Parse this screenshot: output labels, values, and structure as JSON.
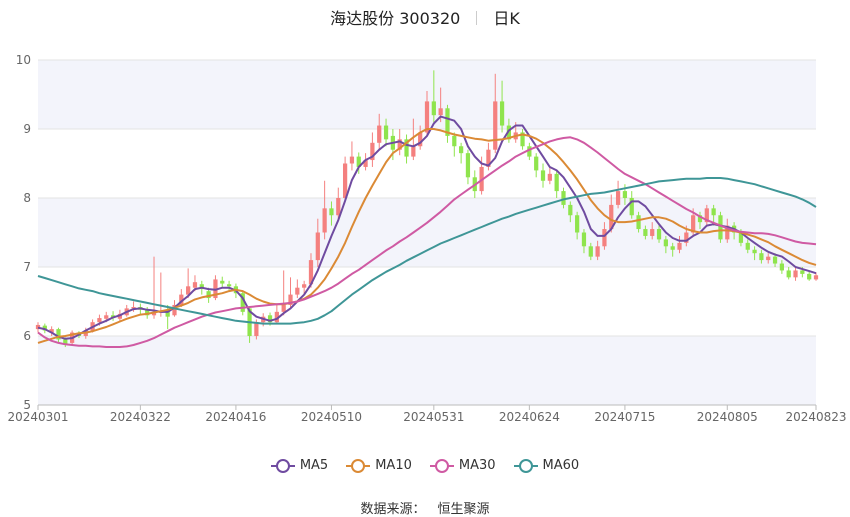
{
  "header": {
    "title": "海达股份 300320",
    "period": "日K"
  },
  "source": {
    "label": "数据来源：",
    "name": "恒生聚源"
  },
  "colors": {
    "up": "#f4807f",
    "down": "#8fe44d",
    "MA5": "#6f4ba0",
    "MA10": "#db8a35",
    "MA30": "#cf5aa3",
    "MA60": "#3f9697",
    "band": "#f3f4fb",
    "grid": "#e3e3e3"
  },
  "chart_data": {
    "type": "candlestick",
    "ylim": [
      5,
      10
    ],
    "yticks": [
      5,
      6,
      7,
      8,
      9,
      10
    ],
    "grid": true,
    "legend_position": "bottom",
    "date_range": [
      "20240301",
      "20240823"
    ],
    "xtick_labels": [
      "20240301",
      "20240322",
      "20240416",
      "20240510",
      "20240531",
      "20240624",
      "20240715",
      "20240805",
      "20240823"
    ],
    "xtick_index": [
      0,
      15,
      29,
      43,
      58,
      72,
      86,
      101,
      114
    ],
    "candles": [
      [
        6.1,
        6.16,
        6.2,
        6.05
      ],
      [
        6.15,
        6.08,
        6.18,
        6.04
      ],
      [
        6.05,
        6.1,
        6.14,
        6.0
      ],
      [
        6.1,
        5.95,
        6.12,
        5.9
      ],
      [
        5.95,
        5.88,
        5.98,
        5.84
      ],
      [
        5.9,
        6.05,
        6.08,
        5.86
      ],
      [
        6.02,
        6.0,
        6.07,
        5.97
      ],
      [
        6.0,
        6.08,
        6.12,
        5.96
      ],
      [
        6.08,
        6.2,
        6.24,
        6.05
      ],
      [
        6.2,
        6.26,
        6.31,
        6.15
      ],
      [
        6.25,
        6.3,
        6.35,
        6.2
      ],
      [
        6.3,
        6.26,
        6.36,
        6.22
      ],
      [
        6.25,
        6.32,
        6.38,
        6.2
      ],
      [
        6.3,
        6.4,
        6.45,
        6.28
      ],
      [
        6.4,
        6.42,
        6.5,
        6.35
      ],
      [
        6.42,
        6.38,
        6.47,
        6.3
      ],
      [
        6.38,
        6.3,
        6.42,
        6.25
      ],
      [
        6.3,
        6.35,
        7.15,
        6.25
      ],
      [
        6.35,
        6.35,
        6.92,
        6.28
      ],
      [
        6.38,
        6.28,
        6.45,
        6.1
      ],
      [
        6.3,
        6.45,
        6.52,
        6.28
      ],
      [
        6.45,
        6.6,
        6.68,
        6.42
      ],
      [
        6.6,
        6.72,
        6.98,
        6.55
      ],
      [
        6.7,
        6.78,
        6.88,
        6.65
      ],
      [
        6.75,
        6.68,
        6.8,
        6.6
      ],
      [
        6.65,
        6.55,
        6.7,
        6.48
      ],
      [
        6.55,
        6.82,
        6.88,
        6.52
      ],
      [
        6.8,
        6.76,
        6.86,
        6.7
      ],
      [
        6.75,
        6.72,
        6.8,
        6.66
      ],
      [
        6.72,
        6.62,
        6.76,
        6.55
      ],
      [
        6.62,
        6.35,
        6.65,
        6.3
      ],
      [
        6.4,
        6.0,
        6.42,
        5.9
      ],
      [
        6.0,
        6.2,
        6.24,
        5.95
      ],
      [
        6.2,
        6.28,
        6.33,
        6.14
      ],
      [
        6.3,
        6.2,
        6.34,
        6.15
      ],
      [
        6.2,
        6.35,
        6.45,
        6.18
      ],
      [
        6.35,
        6.45,
        6.95,
        6.3
      ],
      [
        6.45,
        6.6,
        6.85,
        6.4
      ],
      [
        6.6,
        6.7,
        6.82,
        6.55
      ],
      [
        6.7,
        6.75,
        6.8,
        6.6
      ],
      [
        6.75,
        7.1,
        7.2,
        6.7
      ],
      [
        7.1,
        7.5,
        7.7,
        7.0
      ],
      [
        7.5,
        7.85,
        8.25,
        7.4
      ],
      [
        7.85,
        7.75,
        7.95,
        7.6
      ],
      [
        7.75,
        8.0,
        8.15,
        7.7
      ],
      [
        8.0,
        8.5,
        8.6,
        7.95
      ],
      [
        8.5,
        8.6,
        8.82,
        8.4
      ],
      [
        8.6,
        8.45,
        8.66,
        8.35
      ],
      [
        8.45,
        8.55,
        8.65,
        8.4
      ],
      [
        8.55,
        8.8,
        8.95,
        8.45
      ],
      [
        8.8,
        9.05,
        9.22,
        8.7
      ],
      [
        9.05,
        8.85,
        9.15,
        8.75
      ],
      [
        8.9,
        8.7,
        9.0,
        8.55
      ],
      [
        8.7,
        8.85,
        9.0,
        8.62
      ],
      [
        8.85,
        8.6,
        8.92,
        8.5
      ],
      [
        8.6,
        8.75,
        9.15,
        8.55
      ],
      [
        8.75,
        8.95,
        9.05,
        8.7
      ],
      [
        8.95,
        9.4,
        9.55,
        8.9
      ],
      [
        9.4,
        9.2,
        9.85,
        9.1
      ],
      [
        9.2,
        9.3,
        9.6,
        9.1
      ],
      [
        9.3,
        8.9,
        9.35,
        8.8
      ],
      [
        8.9,
        8.75,
        8.95,
        8.6
      ],
      [
        8.75,
        8.65,
        8.8,
        8.5
      ],
      [
        8.65,
        8.3,
        8.7,
        8.2
      ],
      [
        8.3,
        8.1,
        8.4,
        8.0
      ],
      [
        8.1,
        8.45,
        8.6,
        8.05
      ],
      [
        8.45,
        8.7,
        8.8,
        8.4
      ],
      [
        8.7,
        9.4,
        9.8,
        8.65
      ],
      [
        9.4,
        9.05,
        9.7,
        8.95
      ],
      [
        9.05,
        8.85,
        9.15,
        8.8
      ],
      [
        8.85,
        8.95,
        9.1,
        8.8
      ],
      [
        8.95,
        8.75,
        9.0,
        8.7
      ],
      [
        8.75,
        8.6,
        8.8,
        8.55
      ],
      [
        8.6,
        8.4,
        8.65,
        8.3
      ],
      [
        8.4,
        8.25,
        8.5,
        8.15
      ],
      [
        8.25,
        8.35,
        8.45,
        8.2
      ],
      [
        8.35,
        8.1,
        8.4,
        8.0
      ],
      [
        8.1,
        7.9,
        8.15,
        7.85
      ],
      [
        7.9,
        7.75,
        7.95,
        7.65
      ],
      [
        7.75,
        7.5,
        7.8,
        7.4
      ],
      [
        7.5,
        7.3,
        7.55,
        7.2
      ],
      [
        7.3,
        7.15,
        7.35,
        7.1
      ],
      [
        7.15,
        7.3,
        7.38,
        7.1
      ],
      [
        7.3,
        7.55,
        7.65,
        7.25
      ],
      [
        7.55,
        7.9,
        8.05,
        7.5
      ],
      [
        7.9,
        8.1,
        8.25,
        7.85
      ],
      [
        8.1,
        8.0,
        8.2,
        7.9
      ],
      [
        8.0,
        7.75,
        8.1,
        7.7
      ],
      [
        7.75,
        7.55,
        7.8,
        7.5
      ],
      [
        7.55,
        7.45,
        7.6,
        7.4
      ],
      [
        7.45,
        7.55,
        7.65,
        7.4
      ],
      [
        7.55,
        7.4,
        7.6,
        7.35
      ],
      [
        7.4,
        7.3,
        7.45,
        7.2
      ],
      [
        7.3,
        7.25,
        7.35,
        7.15
      ],
      [
        7.25,
        7.35,
        7.45,
        7.2
      ],
      [
        7.35,
        7.5,
        7.6,
        7.3
      ],
      [
        7.5,
        7.75,
        7.85,
        7.45
      ],
      [
        7.75,
        7.65,
        7.8,
        7.55
      ],
      [
        7.65,
        7.85,
        7.9,
        7.6
      ],
      [
        7.85,
        7.75,
        7.9,
        7.6
      ],
      [
        7.75,
        7.4,
        7.8,
        7.35
      ],
      [
        7.4,
        7.6,
        7.7,
        7.35
      ],
      [
        7.6,
        7.5,
        7.65,
        7.4
      ],
      [
        7.5,
        7.35,
        7.55,
        7.3
      ],
      [
        7.35,
        7.25,
        7.4,
        7.2
      ],
      [
        7.25,
        7.2,
        7.3,
        7.1
      ],
      [
        7.2,
        7.1,
        7.25,
        7.05
      ],
      [
        7.1,
        7.15,
        7.2,
        7.05
      ],
      [
        7.15,
        7.05,
        7.2,
        7.0
      ],
      [
        7.05,
        6.95,
        7.1,
        6.9
      ],
      [
        6.95,
        6.85,
        7.0,
        6.82
      ],
      [
        6.85,
        6.95,
        7.0,
        6.8
      ],
      [
        6.95,
        6.9,
        7.0,
        6.85
      ],
      [
        6.9,
        6.82,
        6.95,
        6.8
      ],
      [
        6.82,
        6.88,
        6.92,
        6.8
      ]
    ],
    "series": [
      {
        "name": "MA5",
        "values": [
          6.12,
          6.1,
          6.05,
          5.99,
          5.96,
          5.97,
          6.02,
          6.08,
          6.13,
          6.18,
          6.22,
          6.27,
          6.3,
          6.35,
          6.39,
          6.4,
          6.38,
          6.37,
          6.35,
          6.35,
          6.41,
          6.5,
          6.58,
          6.68,
          6.7,
          6.68,
          6.67,
          6.7,
          6.7,
          6.66,
          6.55,
          6.36,
          6.28,
          6.25,
          6.22,
          6.25,
          6.33,
          6.4,
          6.5,
          6.6,
          6.75,
          6.95,
          7.2,
          7.45,
          7.68,
          7.96,
          8.26,
          8.45,
          8.55,
          8.6,
          8.7,
          8.78,
          8.8,
          8.82,
          8.77,
          8.75,
          8.8,
          8.9,
          9.08,
          9.18,
          9.15,
          9.12,
          9.0,
          8.75,
          8.6,
          8.5,
          8.47,
          8.58,
          8.82,
          8.98,
          9.05,
          9.05,
          8.9,
          8.75,
          8.6,
          8.45,
          8.4,
          8.3,
          8.15,
          8.0,
          7.8,
          7.55,
          7.45,
          7.45,
          7.55,
          7.72,
          7.85,
          7.95,
          7.95,
          7.88,
          7.75,
          7.62,
          7.5,
          7.42,
          7.38,
          7.38,
          7.45,
          7.5,
          7.6,
          7.62,
          7.6,
          7.58,
          7.55,
          7.5,
          7.42,
          7.35,
          7.28,
          7.22,
          7.18,
          7.15,
          7.08,
          7.0,
          6.97,
          6.94,
          6.91
        ]
      },
      {
        "name": "MA10",
        "values": [
          5.9,
          5.93,
          5.96,
          5.99,
          6.0,
          6.02,
          6.04,
          6.05,
          6.07,
          6.1,
          6.13,
          6.17,
          6.21,
          6.25,
          6.28,
          6.31,
          6.32,
          6.34,
          6.36,
          6.38,
          6.41,
          6.44,
          6.48,
          6.53,
          6.56,
          6.58,
          6.6,
          6.62,
          6.65,
          6.67,
          6.65,
          6.6,
          6.54,
          6.5,
          6.47,
          6.46,
          6.46,
          6.48,
          6.5,
          6.54,
          6.6,
          6.7,
          6.82,
          6.98,
          7.15,
          7.35,
          7.58,
          7.8,
          8.0,
          8.18,
          8.35,
          8.52,
          8.65,
          8.72,
          8.8,
          8.88,
          8.95,
          9.0,
          9.0,
          8.98,
          8.95,
          8.92,
          8.9,
          8.88,
          8.86,
          8.85,
          8.83,
          8.84,
          8.85,
          8.87,
          8.9,
          8.92,
          8.9,
          8.86,
          8.8,
          8.72,
          8.63,
          8.52,
          8.4,
          8.27,
          8.12,
          7.97,
          7.85,
          7.75,
          7.68,
          7.65,
          7.65,
          7.66,
          7.68,
          7.7,
          7.72,
          7.72,
          7.7,
          7.66,
          7.6,
          7.55,
          7.52,
          7.5,
          7.5,
          7.52,
          7.53,
          7.53,
          7.52,
          7.5,
          7.47,
          7.44,
          7.4,
          7.36,
          7.3,
          7.25,
          7.2,
          7.15,
          7.1,
          7.06,
          7.03
        ]
      },
      {
        "name": "MA30",
        "values": [
          6.05,
          5.98,
          5.93,
          5.9,
          5.88,
          5.87,
          5.86,
          5.86,
          5.85,
          5.85,
          5.84,
          5.84,
          5.84,
          5.85,
          5.87,
          5.9,
          5.93,
          5.97,
          6.02,
          6.07,
          6.12,
          6.16,
          6.2,
          6.24,
          6.28,
          6.31,
          6.34,
          6.36,
          6.38,
          6.4,
          6.41,
          6.42,
          6.43,
          6.44,
          6.45,
          6.46,
          6.47,
          6.48,
          6.5,
          6.53,
          6.57,
          6.61,
          6.65,
          6.7,
          6.76,
          6.83,
          6.9,
          6.96,
          7.03,
          7.1,
          7.17,
          7.24,
          7.3,
          7.37,
          7.43,
          7.5,
          7.57,
          7.64,
          7.72,
          7.8,
          7.89,
          7.98,
          8.05,
          8.12,
          8.19,
          8.26,
          8.33,
          8.4,
          8.47,
          8.53,
          8.6,
          8.65,
          8.7,
          8.74,
          8.78,
          8.82,
          8.85,
          8.87,
          8.88,
          8.85,
          8.8,
          8.73,
          8.66,
          8.58,
          8.5,
          8.42,
          8.35,
          8.3,
          8.25,
          8.2,
          8.14,
          8.08,
          8.02,
          7.96,
          7.9,
          7.84,
          7.79,
          7.73,
          7.68,
          7.64,
          7.6,
          7.56,
          7.53,
          7.51,
          7.5,
          7.49,
          7.49,
          7.48,
          7.46,
          7.43,
          7.4,
          7.37,
          7.35,
          7.34,
          7.33
        ]
      },
      {
        "name": "MA60",
        "values": [
          6.87,
          6.84,
          6.81,
          6.78,
          6.75,
          6.72,
          6.69,
          6.67,
          6.65,
          6.62,
          6.6,
          6.58,
          6.56,
          6.54,
          6.52,
          6.5,
          6.48,
          6.46,
          6.44,
          6.42,
          6.4,
          6.38,
          6.36,
          6.34,
          6.32,
          6.3,
          6.28,
          6.26,
          6.24,
          6.22,
          6.21,
          6.2,
          6.19,
          6.18,
          6.18,
          6.18,
          6.18,
          6.18,
          6.19,
          6.2,
          6.22,
          6.25,
          6.3,
          6.36,
          6.44,
          6.52,
          6.6,
          6.67,
          6.74,
          6.81,
          6.87,
          6.93,
          6.98,
          7.03,
          7.09,
          7.14,
          7.19,
          7.24,
          7.29,
          7.34,
          7.38,
          7.42,
          7.46,
          7.5,
          7.54,
          7.58,
          7.62,
          7.66,
          7.7,
          7.73,
          7.77,
          7.8,
          7.83,
          7.86,
          7.89,
          7.92,
          7.95,
          7.98,
          8.0,
          8.02,
          8.04,
          8.06,
          8.07,
          8.08,
          8.1,
          8.12,
          8.14,
          8.16,
          8.18,
          8.2,
          8.22,
          8.24,
          8.25,
          8.26,
          8.27,
          8.28,
          8.28,
          8.28,
          8.29,
          8.29,
          8.29,
          8.28,
          8.26,
          8.24,
          8.22,
          8.2,
          8.17,
          8.14,
          8.11,
          8.08,
          8.05,
          8.02,
          7.98,
          7.93,
          7.87
        ]
      }
    ]
  }
}
